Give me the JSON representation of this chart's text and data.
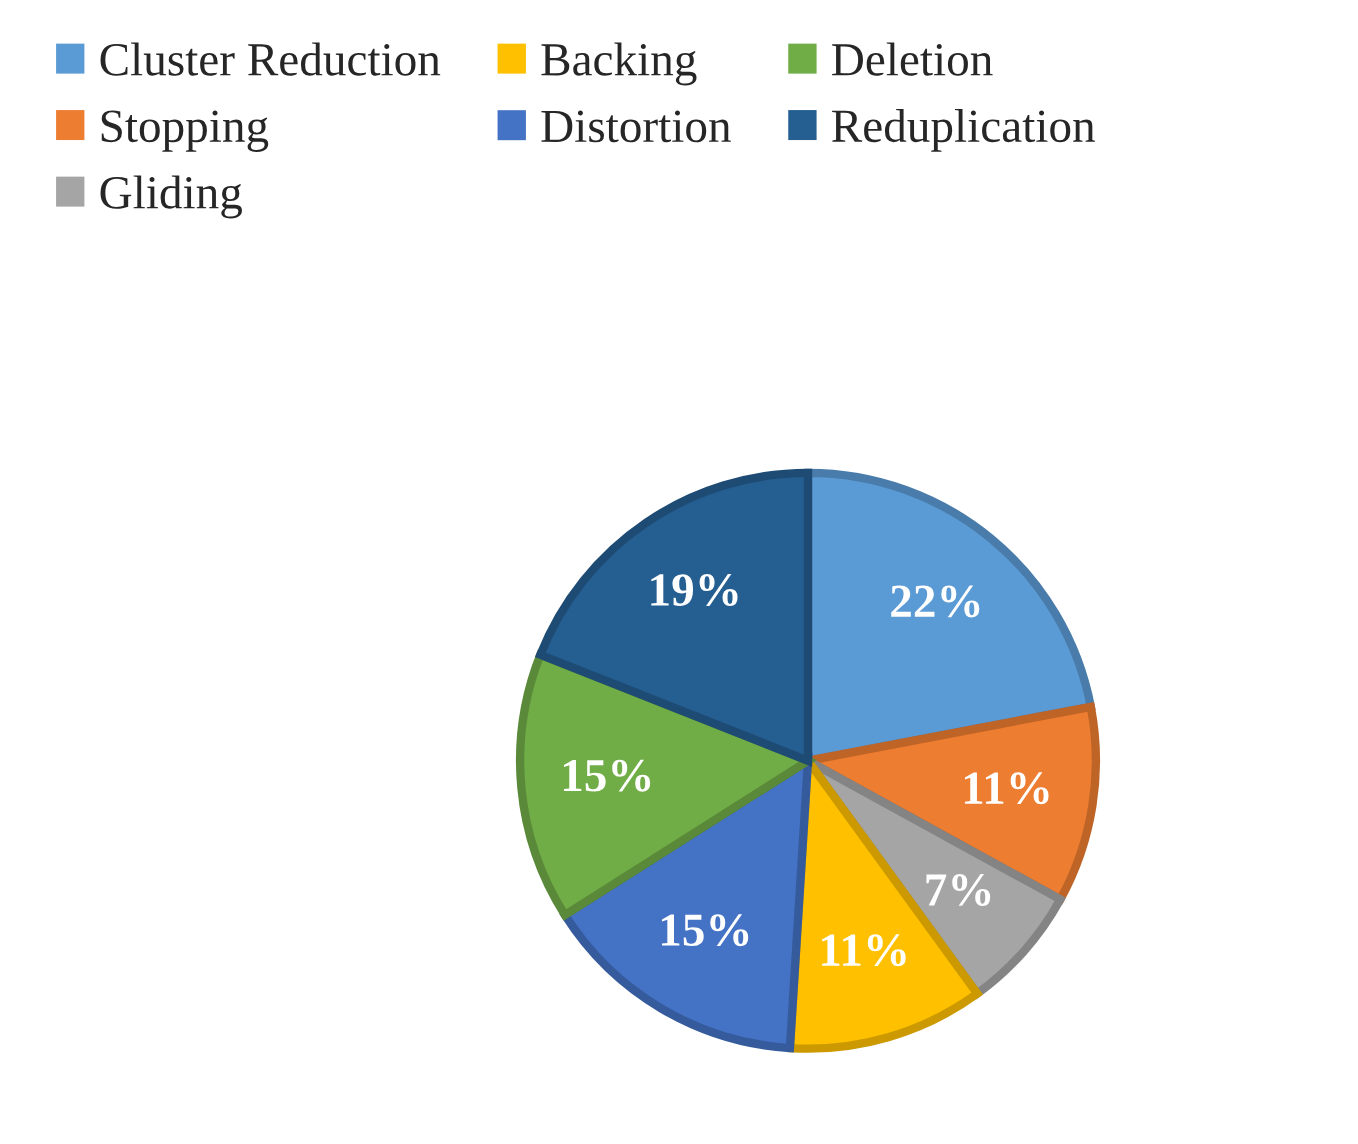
{
  "chart_data": {
    "type": "pie",
    "categories": [
      "Cluster Reduction",
      "Stopping",
      "Gliding",
      "Backing",
      "Distortion",
      "Deletion",
      "Reduplication"
    ],
    "values": [
      22,
      11,
      7,
      11,
      15,
      15,
      19
    ],
    "colors": [
      "#5b9bd5",
      "#ed7d31",
      "#a5a5a5",
      "#ffc000",
      "#4472c4",
      "#70ad47",
      "#255e91"
    ],
    "value_labels": [
      "22%",
      "11%",
      "7%",
      "11%",
      "15%",
      "15%",
      "19%"
    ],
    "legend": "top"
  }
}
